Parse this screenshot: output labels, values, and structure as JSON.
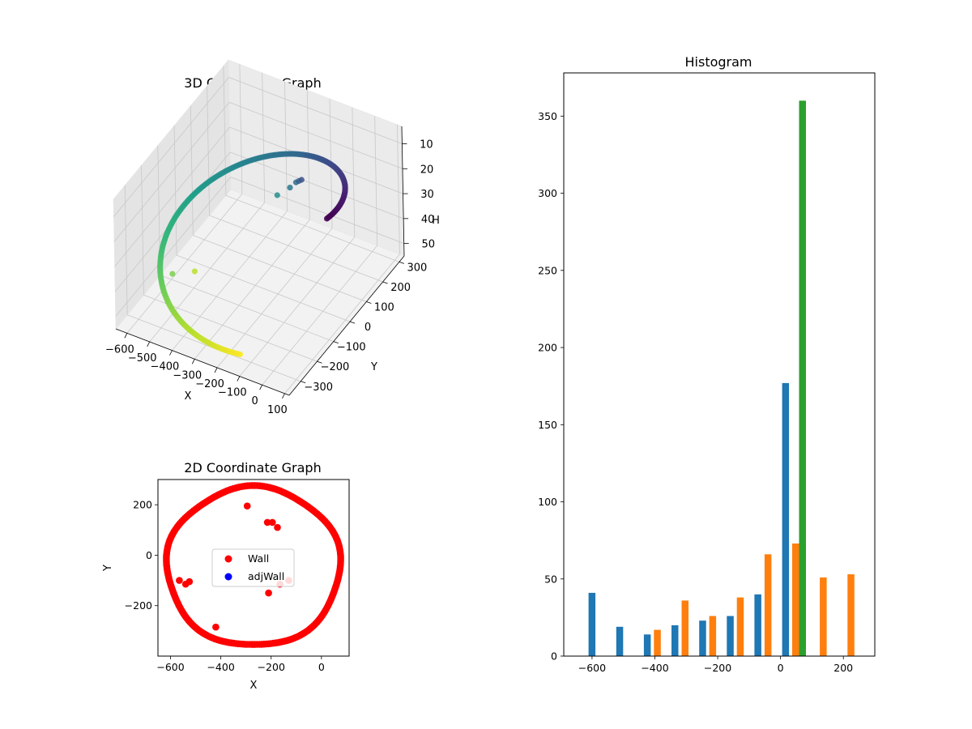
{
  "chart_data": [
    {
      "type": "scatter3d",
      "title": "3D Coordinate Graph",
      "xlabel": "X",
      "ylabel": "Y",
      "zlabel": "H",
      "xticks": [
        -600,
        -500,
        -400,
        -300,
        -200,
        -100,
        0,
        100
      ],
      "yticks": [
        -300,
        -200,
        -100,
        0,
        100,
        200,
        300
      ],
      "zticks": [
        10,
        20,
        30,
        40,
        50
      ],
      "xlim": [
        -650,
        120
      ],
      "ylim": [
        -370,
        330
      ],
      "zlim": [
        3,
        55
      ],
      "z_inverted": true,
      "colormap": "viridis",
      "grid": true
    },
    {
      "type": "scatter",
      "title": "2D Coordinate Graph",
      "xlabel": "X",
      "ylabel": "Y",
      "xticks": [
        -600,
        -400,
        -200,
        0
      ],
      "yticks": [
        -200,
        0,
        200
      ],
      "xlim": [
        -650,
        110
      ],
      "ylim": [
        -400,
        300
      ],
      "legend": "center",
      "series": [
        {
          "name": "Wall",
          "color": "#ff0000"
        },
        {
          "name": "adjWall",
          "color": "#0000ff"
        }
      ],
      "outliers": [
        [
          -295,
          195
        ],
        [
          -215,
          130
        ],
        [
          -195,
          130
        ],
        [
          -175,
          110
        ],
        [
          -565,
          -100
        ],
        [
          -540,
          -115
        ],
        [
          -525,
          -105
        ],
        [
          -210,
          -150
        ],
        [
          -165,
          -115
        ],
        [
          -130,
          -100
        ],
        [
          -420,
          -285
        ]
      ]
    },
    {
      "type": "bar",
      "title": "Histogram",
      "xticks": [
        -600,
        -400,
        -200,
        0,
        200
      ],
      "yticks": [
        0,
        50,
        100,
        150,
        200,
        250,
        300,
        350
      ],
      "xlim": [
        -690,
        300
      ],
      "ylim": [
        0,
        378
      ],
      "series": [
        {
          "color": "#1f77b4",
          "centers": [
            -600,
            -512,
            -424,
            -336,
            -248,
            -160,
            -72,
            16
          ],
          "values": [
            41,
            19,
            14,
            20,
            23,
            26,
            40,
            177
          ]
        },
        {
          "color": "#ff7f0e",
          "centers": [
            -392,
            -304,
            -216,
            -128,
            -40,
            48,
            136,
            224
          ],
          "values": [
            17,
            36,
            26,
            38,
            66,
            73,
            51,
            53
          ]
        },
        {
          "color": "#2ca02c",
          "centers": [
            70
          ],
          "values": [
            360
          ]
        }
      ]
    }
  ]
}
